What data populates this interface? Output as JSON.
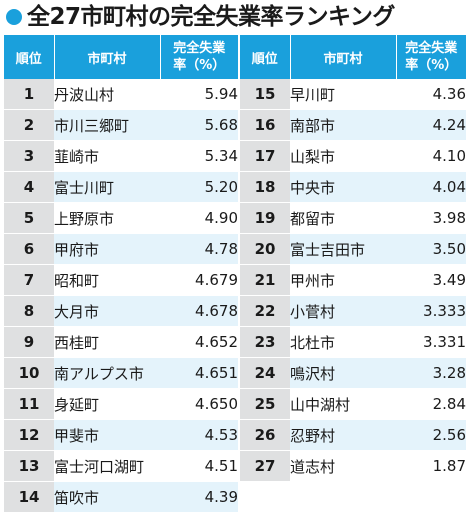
{
  "title": "全27市町村の完全失業率ランキング",
  "accent_color": "#1aa0dc",
  "headers": {
    "rank": "順位",
    "municipality": "市町村",
    "rate_line1": "完全失業",
    "rate_line2": "率（%）"
  },
  "left_rows": [
    {
      "rank": "1",
      "name": "丹波山村",
      "rate": "5.94"
    },
    {
      "rank": "2",
      "name": "市川三郷町",
      "rate": "5.68"
    },
    {
      "rank": "3",
      "name": "韮崎市",
      "rate": "5.34"
    },
    {
      "rank": "4",
      "name": "富士川町",
      "rate": "5.20"
    },
    {
      "rank": "5",
      "name": "上野原市",
      "rate": "4.90"
    },
    {
      "rank": "6",
      "name": "甲府市",
      "rate": "4.78"
    },
    {
      "rank": "7",
      "name": "昭和町",
      "rate": "4.679"
    },
    {
      "rank": "8",
      "name": "大月市",
      "rate": "4.678"
    },
    {
      "rank": "9",
      "name": "西桂町",
      "rate": "4.652"
    },
    {
      "rank": "10",
      "name": "南アルプス市",
      "rate": "4.651"
    },
    {
      "rank": "11",
      "name": "身延町",
      "rate": "4.650"
    },
    {
      "rank": "12",
      "name": "甲斐市",
      "rate": "4.53"
    },
    {
      "rank": "13",
      "name": "富士河口湖町",
      "rate": "4.51"
    },
    {
      "rank": "14",
      "name": "笛吹市",
      "rate": "4.39"
    }
  ],
  "right_rows": [
    {
      "rank": "15",
      "name": "早川町",
      "rate": "4.36"
    },
    {
      "rank": "16",
      "name": "南部市",
      "rate": "4.24"
    },
    {
      "rank": "17",
      "name": "山梨市",
      "rate": "4.10"
    },
    {
      "rank": "18",
      "name": "中央市",
      "rate": "4.04"
    },
    {
      "rank": "19",
      "name": "都留市",
      "rate": "3.98"
    },
    {
      "rank": "20",
      "name": "富士吉田市",
      "rate": "3.50"
    },
    {
      "rank": "21",
      "name": "甲州市",
      "rate": "3.49"
    },
    {
      "rank": "22",
      "name": "小菅村",
      "rate": "3.333"
    },
    {
      "rank": "23",
      "name": "北杜市",
      "rate": "3.331"
    },
    {
      "rank": "24",
      "name": "鳴沢村",
      "rate": "3.28"
    },
    {
      "rank": "25",
      "name": "山中湖村",
      "rate": "2.84"
    },
    {
      "rank": "26",
      "name": "忍野村",
      "rate": "2.56"
    },
    {
      "rank": "27",
      "name": "道志村",
      "rate": "1.87"
    }
  ]
}
